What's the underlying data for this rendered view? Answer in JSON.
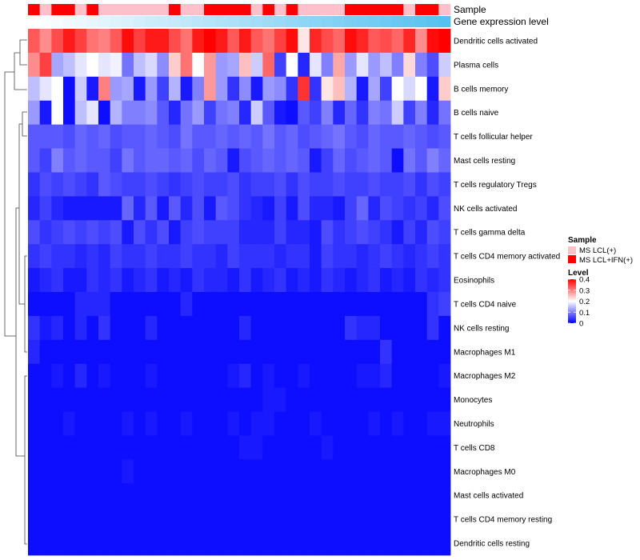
{
  "chart_data": {
    "type": "heatmap",
    "annotations": [
      {
        "name": "Sample",
        "kind": "categorical",
        "values": [
          2,
          1,
          2,
          2,
          1,
          2,
          1,
          1,
          1,
          1,
          1,
          1,
          2,
          1,
          1,
          2,
          2,
          2,
          2,
          1,
          2,
          1,
          2,
          1,
          1,
          1,
          1,
          2,
          2,
          2,
          2,
          2,
          1,
          2,
          2,
          1
        ]
      },
      {
        "name": "Gene expression level",
        "kind": "gradient",
        "from": "#ffffff",
        "to": "#55c1f0"
      }
    ],
    "rows": [
      {
        "label": "Dendritic cells activated",
        "values": [
          0.33,
          0.29,
          0.34,
          0.38,
          0.35,
          0.31,
          0.3,
          0.33,
          0.39,
          0.35,
          0.38,
          0.38,
          0.34,
          0.31,
          0.38,
          0.4,
          0.38,
          0.33,
          0.38,
          0.33,
          0.31,
          0.35,
          0.39,
          0.22,
          0.37,
          0.34,
          0.32,
          0.39,
          0.37,
          0.33,
          0.34,
          0.32,
          0.37,
          0.29,
          0.39,
          0.4
        ]
      },
      {
        "label": "Plasma cells",
        "values": [
          0.29,
          0.35,
          0.13,
          0.15,
          0.18,
          0.2,
          0.18,
          0.19,
          0.09,
          0.15,
          0.17,
          0.11,
          0.24,
          0.31,
          0.2,
          0.28,
          0.12,
          0.13,
          0.25,
          0.16,
          0.32,
          0.05,
          0.2,
          0.03,
          0.18,
          0.1,
          0.27,
          0.12,
          0.18,
          0.12,
          0.15,
          0.1,
          0.23,
          0.1,
          0.06,
          0.16
        ]
      },
      {
        "label": "B cells memory",
        "values": [
          0.15,
          0.18,
          0.2,
          0.01,
          0.16,
          0.02,
          0.3,
          0.12,
          0.13,
          0.02,
          0.12,
          0.05,
          0.14,
          0.02,
          0.1,
          0.28,
          0.12,
          0.04,
          0.11,
          0.02,
          0.12,
          0.11,
          0.04,
          0.36,
          0.04,
          0.22,
          0.25,
          0.14,
          0.02,
          0.13,
          0.05,
          0.2,
          0.17,
          0.2,
          0.02,
          0.24
        ]
      },
      {
        "label": "B cells naive",
        "values": [
          0.12,
          0.02,
          0.2,
          0.01,
          0.15,
          0.18,
          0.01,
          0.14,
          0.1,
          0.1,
          0.11,
          0.07,
          0.03,
          0.09,
          0.12,
          0.05,
          0.09,
          0.1,
          0.03,
          0.16,
          0.07,
          0.02,
          0.01,
          0.07,
          0.05,
          0.1,
          0.03,
          0.08,
          0.04,
          0.1,
          0.09,
          0.16,
          0.05,
          0.1,
          0.03,
          0.09
        ]
      },
      {
        "label": "T cells follicular helper",
        "values": [
          0.07,
          0.07,
          0.07,
          0.06,
          0.08,
          0.07,
          0.08,
          0.06,
          0.07,
          0.07,
          0.08,
          0.07,
          0.06,
          0.09,
          0.07,
          0.07,
          0.08,
          0.07,
          0.08,
          0.07,
          0.09,
          0.07,
          0.08,
          0.06,
          0.07,
          0.08,
          0.09,
          0.07,
          0.06,
          0.08,
          0.07,
          0.07,
          0.08,
          0.07,
          0.06,
          0.07
        ]
      },
      {
        "label": "Mast cells resting",
        "values": [
          0.07,
          0.05,
          0.1,
          0.07,
          0.08,
          0.07,
          0.07,
          0.05,
          0.09,
          0.07,
          0.08,
          0.08,
          0.07,
          0.08,
          0.06,
          0.08,
          0.07,
          0.02,
          0.06,
          0.07,
          0.08,
          0.07,
          0.08,
          0.07,
          0.02,
          0.05,
          0.08,
          0.06,
          0.07,
          0.08,
          0.07,
          0.01,
          0.09,
          0.07,
          0.1,
          0.08
        ]
      },
      {
        "label": "T cells regulatory  Tregs",
        "values": [
          0.04,
          0.06,
          0.05,
          0.06,
          0.05,
          0.04,
          0.07,
          0.06,
          0.05,
          0.05,
          0.06,
          0.05,
          0.04,
          0.05,
          0.06,
          0.05,
          0.05,
          0.06,
          0.04,
          0.05,
          0.05,
          0.06,
          0.04,
          0.06,
          0.05,
          0.05,
          0.06,
          0.05,
          0.05,
          0.06,
          0.05,
          0.05,
          0.06,
          0.04,
          0.06,
          0.05
        ]
      },
      {
        "label": "NK cells activated",
        "values": [
          0.03,
          0.05,
          0.03,
          0.02,
          0.02,
          0.02,
          0.02,
          0.02,
          0.08,
          0.03,
          0.07,
          0.02,
          0.07,
          0.03,
          0.06,
          0.02,
          0.07,
          0.06,
          0.04,
          0.03,
          0.02,
          0.05,
          0.02,
          0.06,
          0.03,
          0.03,
          0.02,
          0.05,
          0.08,
          0.03,
          0.06,
          0.05,
          0.04,
          0.05,
          0.03,
          0.06
        ]
      },
      {
        "label": "T cells gamma delta",
        "values": [
          0.06,
          0.04,
          0.05,
          0.06,
          0.05,
          0.06,
          0.05,
          0.06,
          0.02,
          0.06,
          0.04,
          0.06,
          0.02,
          0.05,
          0.06,
          0.05,
          0.05,
          0.05,
          0.03,
          0.03,
          0.03,
          0.05,
          0.03,
          0.03,
          0.02,
          0.06,
          0.04,
          0.05,
          0.06,
          0.05,
          0.04,
          0.02,
          0.05,
          0.03,
          0.06,
          0.05
        ]
      },
      {
        "label": "T cells CD4 memory activated",
        "values": [
          0.04,
          0.05,
          0.04,
          0.04,
          0.03,
          0.04,
          0.03,
          0.05,
          0.04,
          0.04,
          0.05,
          0.04,
          0.04,
          0.05,
          0.04,
          0.04,
          0.03,
          0.05,
          0.04,
          0.04,
          0.04,
          0.03,
          0.04,
          0.04,
          0.02,
          0.05,
          0.04,
          0.04,
          0.03,
          0.04,
          0.05,
          0.04,
          0.03,
          0.04,
          0.05,
          0.04
        ]
      },
      {
        "label": "Eosinophils",
        "values": [
          0.02,
          0.03,
          0.04,
          0.02,
          0.02,
          0.04,
          0.03,
          0.04,
          0.02,
          0.03,
          0.04,
          0.02,
          0.03,
          0.02,
          0.04,
          0.03,
          0.03,
          0.02,
          0.04,
          0.02,
          0.03,
          0.04,
          0.02,
          0.03,
          0.02,
          0.04,
          0.03,
          0.02,
          0.03,
          0.04,
          0.02,
          0.03,
          0.02,
          0.04,
          0.03,
          0.04
        ]
      },
      {
        "label": "T cells CD4 naive",
        "values": [
          0.01,
          0.01,
          0.01,
          0.01,
          0.03,
          0.03,
          0.03,
          0.01,
          0.01,
          0.01,
          0.01,
          0.01,
          0.01,
          0.03,
          0.01,
          0.01,
          0.01,
          0.01,
          0.01,
          0.01,
          0.01,
          0.01,
          0.01,
          0.01,
          0.01,
          0.01,
          0.01,
          0.01,
          0.01,
          0.01,
          0.01,
          0.01,
          0.01,
          0.01,
          0.04,
          0.05
        ]
      },
      {
        "label": "NK cells resting",
        "values": [
          0.04,
          0.02,
          0.03,
          0.01,
          0.03,
          0.01,
          0.04,
          0.01,
          0.01,
          0.01,
          0.03,
          0.01,
          0.01,
          0.01,
          0.01,
          0.01,
          0.01,
          0.01,
          0.03,
          0.01,
          0.01,
          0.01,
          0.01,
          0.01,
          0.01,
          0.01,
          0.01,
          0.04,
          0.03,
          0.03,
          0.01,
          0.01,
          0.01,
          0.01,
          0.04,
          0.01
        ]
      },
      {
        "label": "Macrophages M1",
        "values": [
          0.03,
          0.01,
          0.01,
          0.01,
          0.01,
          0.01,
          0.01,
          0.01,
          0.01,
          0.01,
          0.01,
          0.01,
          0.01,
          0.01,
          0.01,
          0.01,
          0.01,
          0.01,
          0.01,
          0.01,
          0.01,
          0.01,
          0.01,
          0.01,
          0.01,
          0.01,
          0.01,
          0.01,
          0.01,
          0.01,
          0.04,
          0.01,
          0.01,
          0.01,
          0.01,
          0.01
        ]
      },
      {
        "label": "Macrophages M2",
        "values": [
          0.01,
          0.01,
          0.02,
          0.01,
          0.03,
          0.01,
          0.02,
          0.01,
          0.01,
          0.01,
          0.02,
          0.01,
          0.01,
          0.01,
          0.01,
          0.01,
          0.01,
          0.02,
          0.03,
          0.01,
          0.02,
          0.01,
          0.01,
          0.02,
          0.01,
          0.01,
          0.01,
          0.01,
          0.02,
          0.02,
          0.03,
          0.01,
          0.01,
          0.01,
          0.01,
          0.02
        ]
      },
      {
        "label": "Monocytes",
        "values": [
          0.01,
          0.01,
          0.01,
          0.01,
          0.01,
          0.01,
          0.01,
          0.01,
          0.01,
          0.01,
          0.01,
          0.01,
          0.01,
          0.01,
          0.01,
          0.01,
          0.01,
          0.01,
          0.01,
          0.01,
          0.02,
          0.02,
          0.01,
          0.01,
          0.01,
          0.01,
          0.01,
          0.01,
          0.01,
          0.01,
          0.01,
          0.01,
          0.01,
          0.01,
          0.01,
          0.01
        ]
      },
      {
        "label": "Neutrophils",
        "values": [
          0.01,
          0.01,
          0.01,
          0.02,
          0.01,
          0.01,
          0.01,
          0.01,
          0.02,
          0.01,
          0.02,
          0.01,
          0.01,
          0.02,
          0.01,
          0.01,
          0.01,
          0.02,
          0.01,
          0.02,
          0.02,
          0.01,
          0.01,
          0.01,
          0.02,
          0.01,
          0.01,
          0.01,
          0.01,
          0.02,
          0.01,
          0.02,
          0.01,
          0.01,
          0.02,
          0.02
        ]
      },
      {
        "label": "T cells CD8",
        "values": [
          0.01,
          0.01,
          0.01,
          0.01,
          0.01,
          0.01,
          0.01,
          0.01,
          0.01,
          0.01,
          0.01,
          0.01,
          0.01,
          0.01,
          0.01,
          0.01,
          0.01,
          0.01,
          0.02,
          0.02,
          0.01,
          0.01,
          0.01,
          0.01,
          0.01,
          0.02,
          0.01,
          0.01,
          0.01,
          0.01,
          0.01,
          0.01,
          0.01,
          0.01,
          0.01,
          0.01
        ]
      },
      {
        "label": "Macrophages M0",
        "values": [
          0.01,
          0.01,
          0.01,
          0.01,
          0.01,
          0.01,
          0.01,
          0.01,
          0.02,
          0.01,
          0.01,
          0.01,
          0.01,
          0.01,
          0.01,
          0.01,
          0.01,
          0.01,
          0.01,
          0.01,
          0.01,
          0.01,
          0.01,
          0.01,
          0.01,
          0.01,
          0.01,
          0.01,
          0.01,
          0.01,
          0.01,
          0.01,
          0.01,
          0.01,
          0.01,
          0.01
        ]
      },
      {
        "label": "Mast cells activated",
        "values": [
          0.01,
          0.01,
          0.01,
          0.01,
          0.01,
          0.01,
          0.01,
          0.01,
          0.01,
          0.01,
          0.01,
          0.01,
          0.01,
          0.01,
          0.01,
          0.01,
          0.01,
          0.01,
          0.01,
          0.01,
          0.01,
          0.01,
          0.01,
          0.01,
          0.01,
          0.01,
          0.01,
          0.01,
          0.01,
          0.01,
          0.01,
          0.01,
          0.01,
          0.01,
          0.01,
          0.01
        ]
      },
      {
        "label": "T cells CD4 memory resting",
        "values": [
          0.01,
          0.01,
          0.01,
          0.01,
          0.01,
          0.01,
          0.01,
          0.01,
          0.01,
          0.01,
          0.01,
          0.01,
          0.01,
          0.01,
          0.01,
          0.01,
          0.01,
          0.01,
          0.01,
          0.01,
          0.01,
          0.01,
          0.01,
          0.01,
          0.01,
          0.01,
          0.01,
          0.01,
          0.01,
          0.01,
          0.01,
          0.01,
          0.01,
          0.01,
          0.01,
          0.01
        ]
      },
      {
        "label": "Dendritic cells resting",
        "values": [
          0.01,
          0.01,
          0.01,
          0.01,
          0.01,
          0.01,
          0.01,
          0.01,
          0.01,
          0.01,
          0.01,
          0.01,
          0.01,
          0.01,
          0.01,
          0.01,
          0.01,
          0.01,
          0.01,
          0.01,
          0.01,
          0.01,
          0.01,
          0.01,
          0.01,
          0.01,
          0.01,
          0.01,
          0.01,
          0.01,
          0.01,
          0.01,
          0.01,
          0.01,
          0.01,
          0.01
        ]
      }
    ],
    "legend": {
      "sample": {
        "title": "Sample",
        "items": [
          {
            "label": "MS LCL(+)",
            "color": "#ffc0cb"
          },
          {
            "label": "MS LCL+IFN(+)",
            "color": "#ff0000"
          }
        ]
      },
      "level": {
        "title": "Level",
        "ticks": [
          {
            "value": 0.4,
            "label": "0.4"
          },
          {
            "value": 0.3,
            "label": "0.3"
          },
          {
            "value": 0.2,
            "label": "0.2"
          },
          {
            "value": 0.1,
            "label": "0.1"
          },
          {
            "value": 0,
            "label": "0"
          }
        ],
        "range": [
          0,
          0.4
        ]
      }
    },
    "color_scale": {
      "low": "#0000ff",
      "mid": "#ffffff",
      "high": "#ff0000",
      "domain": [
        0,
        0.2,
        0.4
      ]
    }
  }
}
